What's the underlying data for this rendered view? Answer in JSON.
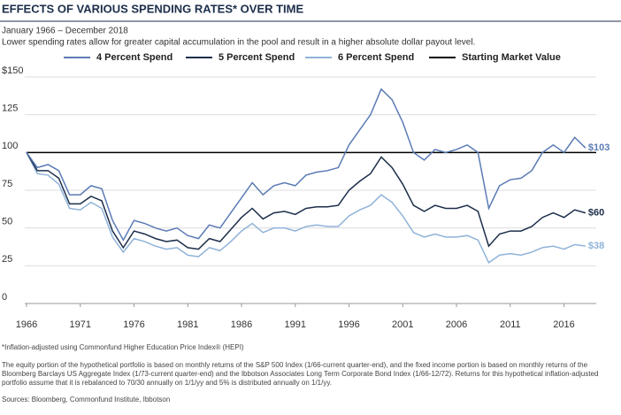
{
  "chart_data": {
    "type": "line",
    "title": "EFFECTS OF VARIOUS SPENDING RATES* OVER TIME",
    "subtitle": "January 1966 – December 2018",
    "description": "Lower spending rates allow for greater capital accumulation in the pool and  result in a higher absolute dollar payout level.",
    "x": [
      1966,
      1967,
      1968,
      1969,
      1970,
      1971,
      1972,
      1973,
      1974,
      1975,
      1976,
      1977,
      1978,
      1979,
      1980,
      1981,
      1982,
      1983,
      1984,
      1985,
      1986,
      1987,
      1988,
      1989,
      1990,
      1991,
      1992,
      1993,
      1994,
      1995,
      1996,
      1997,
      1998,
      1999,
      2000,
      2001,
      2002,
      2003,
      2004,
      2005,
      2006,
      2007,
      2008,
      2009,
      2010,
      2011,
      2012,
      2013,
      2014,
      2015,
      2016,
      2017,
      2018
    ],
    "series": [
      {
        "name": "4 Percent Spend",
        "color": "#5b7bb5",
        "values": [
          100,
          90,
          92,
          88,
          72,
          72,
          78,
          76,
          55,
          42,
          55,
          53,
          50,
          48,
          50,
          45,
          43,
          52,
          50,
          60,
          70,
          80,
          72,
          78,
          80,
          78,
          85,
          87,
          88,
          90,
          105,
          115,
          125,
          142,
          135,
          120,
          100,
          95,
          102,
          100,
          102,
          105,
          100,
          63,
          78,
          82,
          83,
          88,
          100,
          105,
          100,
          110,
          103
        ],
        "value_labels": [
          null,
          null,
          null,
          null,
          null,
          null,
          null,
          null,
          null,
          null,
          null,
          null,
          null,
          null,
          null,
          null,
          null,
          null,
          null,
          null,
          null,
          null,
          null,
          null,
          null,
          null,
          null,
          null,
          null,
          null,
          null,
          null,
          null,
          null,
          null,
          null,
          null,
          null,
          null,
          null,
          null,
          null,
          null,
          null,
          null,
          null,
          null,
          null,
          null,
          null,
          null,
          null,
          "$103"
        ]
      },
      {
        "name": "5 Percent Spend",
        "color": "#1c2e4a",
        "values": [
          100,
          88,
          88,
          83,
          66,
          66,
          71,
          68,
          48,
          37,
          48,
          46,
          43,
          41,
          42,
          37,
          36,
          43,
          41,
          49,
          57,
          63,
          56,
          60,
          61,
          59,
          63,
          64,
          64,
          65,
          75,
          81,
          86,
          97,
          90,
          79,
          65,
          61,
          65,
          63,
          63,
          65,
          61,
          38,
          46,
          48,
          48,
          51,
          57,
          60,
          57,
          62,
          60
        ],
        "value_labels": [
          null,
          null,
          null,
          null,
          null,
          null,
          null,
          null,
          null,
          null,
          null,
          null,
          null,
          null,
          null,
          null,
          null,
          null,
          null,
          null,
          null,
          null,
          null,
          null,
          null,
          null,
          null,
          null,
          null,
          null,
          null,
          null,
          null,
          null,
          null,
          null,
          null,
          null,
          null,
          null,
          null,
          null,
          null,
          null,
          null,
          null,
          null,
          null,
          null,
          null,
          null,
          null,
          "$60"
        ]
      },
      {
        "name": "6 Percent Spend",
        "color": "#8fb3d9",
        "values": [
          100,
          86,
          85,
          79,
          63,
          62,
          67,
          63,
          44,
          34,
          43,
          41,
          38,
          36,
          37,
          32,
          31,
          37,
          35,
          41,
          48,
          53,
          47,
          50,
          50,
          48,
          51,
          52,
          51,
          51,
          58,
          62,
          65,
          72,
          67,
          58,
          47,
          44,
          46,
          44,
          44,
          45,
          42,
          27,
          32,
          33,
          32,
          34,
          37,
          38,
          36,
          39,
          38
        ],
        "value_labels": [
          null,
          null,
          null,
          null,
          null,
          null,
          null,
          null,
          null,
          null,
          null,
          null,
          null,
          null,
          null,
          null,
          null,
          null,
          null,
          null,
          null,
          null,
          null,
          null,
          null,
          null,
          null,
          null,
          null,
          null,
          null,
          null,
          null,
          null,
          null,
          null,
          null,
          null,
          null,
          null,
          null,
          null,
          null,
          null,
          null,
          null,
          null,
          null,
          null,
          null,
          null,
          null,
          "$38"
        ]
      }
    ],
    "reference_line": {
      "name": "Starting Market Value",
      "value": 100,
      "color": "#000000"
    },
    "xlim": [
      1966,
      2019
    ],
    "xticks": [
      1966,
      1971,
      1976,
      1981,
      1986,
      1991,
      1996,
      2001,
      2006,
      2011,
      2016
    ],
    "ylim": [
      0,
      150
    ],
    "yticks": [
      0,
      25,
      50,
      75,
      100,
      125,
      {
        "value": 150,
        "label": "$150"
      }
    ],
    "grid": true,
    "footnotes": [
      "*Inflation-adjusted using Commonfund Higher Education Price Index® (HEPI)",
      "The equity portion of the hypothetical portfolio is based on monthly returns of the S&P 500 Index (1/66-current quarter-end), and the fixed income portion is based on monthly returns of the Bloomberg Barclays US Aggregate Index (1/73-current quarter-end) and the Ibbotson Associates Long Term Corporate Bond Index (1/66-12/72). Returns for this hypothetical inflation-adjusted portfolio assume that it is rebalanced to 70/30 annually on 1/1/yy and 5% is distributed annually on 1/1/yy.",
      "Sources: Bloomberg, Commonfund Institute, Ibbotson"
    ]
  }
}
